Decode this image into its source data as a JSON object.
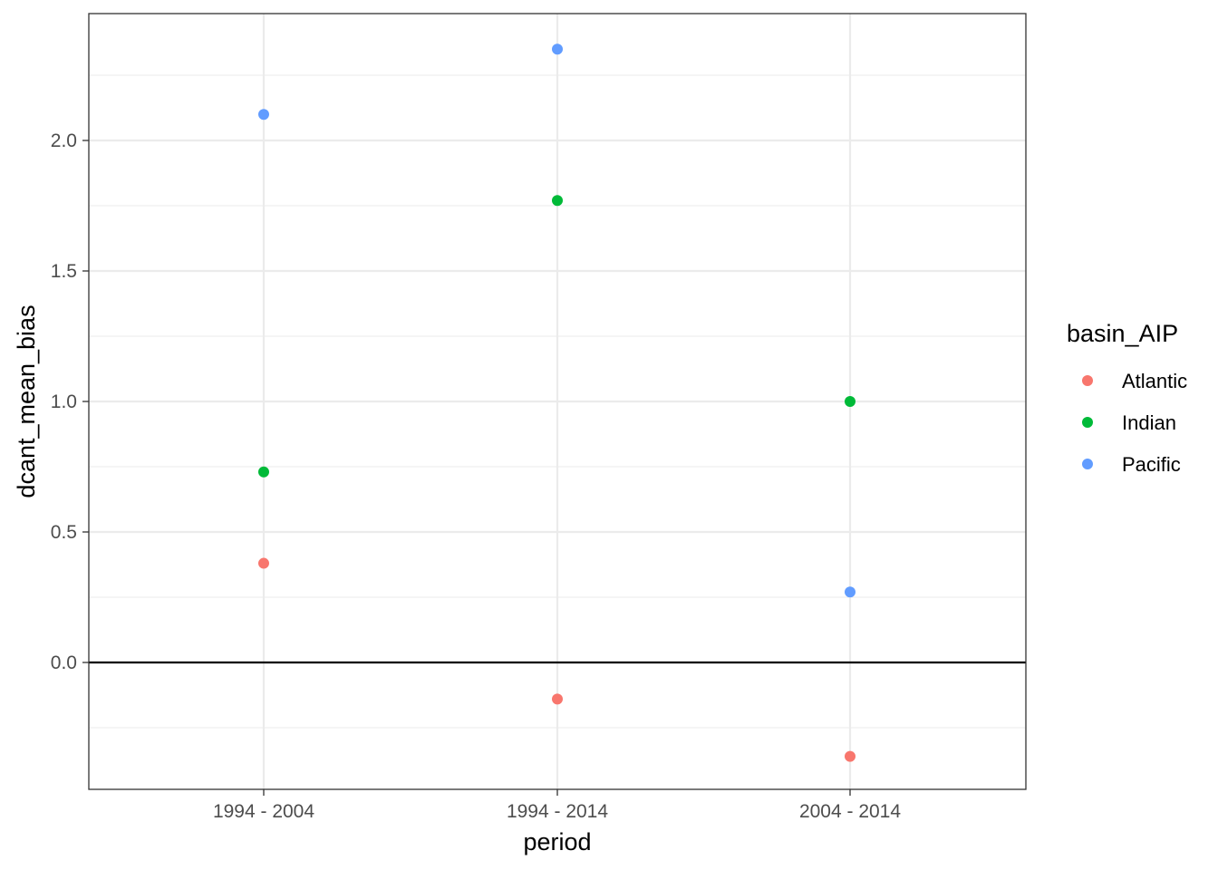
{
  "chart_data": {
    "type": "scatter",
    "xlabel": "period",
    "ylabel": "dcant_mean_bias",
    "categories": [
      "1994 - 2004",
      "1994 - 2014",
      "2004 - 2014"
    ],
    "y_ticks": [
      0.0,
      0.5,
      1.0,
      1.5,
      2.0
    ],
    "y_tick_labels": [
      "0.0",
      "0.5",
      "1.0",
      "1.5",
      "2.0"
    ],
    "ylim": [
      -0.48,
      2.49
    ],
    "grid": true,
    "reference_line_y": 0.0,
    "legend": {
      "title": "basin_AIP",
      "placement": "right"
    },
    "series": [
      {
        "name": "Atlantic",
        "color": "#F8766D",
        "values": [
          0.38,
          -0.14,
          -0.36
        ]
      },
      {
        "name": "Indian",
        "color": "#00BA38",
        "values": [
          0.73,
          1.77,
          1.0
        ]
      },
      {
        "name": "Pacific",
        "color": "#619CFF",
        "values": [
          2.1,
          2.35,
          0.27
        ]
      }
    ]
  }
}
